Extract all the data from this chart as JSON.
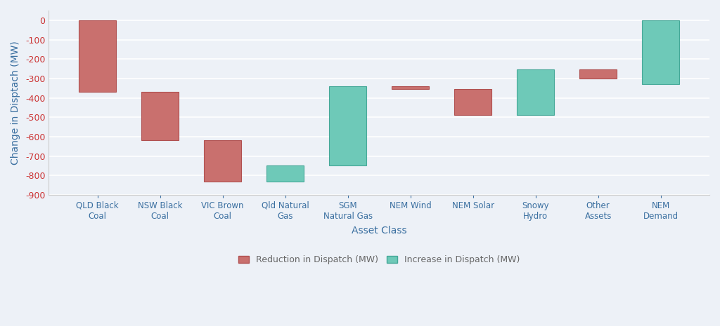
{
  "categories": [
    "QLD Black\nCoal",
    "NSW Black\nCoal",
    "VIC Brown\nCoal",
    "Qld Natural\nGas",
    "SGM\nNatural Gas",
    "NEM Wind",
    "NEM Solar",
    "Snowy\nHydro",
    "Other\nAssets",
    "NEM\nDemand"
  ],
  "bar_bottoms": [
    -370,
    -620,
    -830,
    -830,
    -750,
    -355,
    -490,
    -490,
    -300,
    -330
  ],
  "bar_tops": [
    0,
    -370,
    -620,
    -750,
    -340,
    -340,
    -355,
    -255,
    -255,
    0
  ],
  "bar_types": [
    "reduction",
    "reduction",
    "reduction",
    "increase",
    "increase",
    "reduction",
    "reduction",
    "increase",
    "reduction",
    "increase"
  ],
  "reduction_color": "#c9706e",
  "increase_color": "#6ec9b8",
  "reduction_edge_color": "#b05050",
  "increase_edge_color": "#45a898",
  "xlabel": "Asset Class",
  "ylabel": "Change in Disptach (MW)",
  "ylim": [
    -900,
    50
  ],
  "yticks": [
    0,
    -100,
    -200,
    -300,
    -400,
    -500,
    -600,
    -700,
    -800,
    -900
  ],
  "background_color": "#edf1f7",
  "grid_color": "#ffffff",
  "axis_label_color": "#3a6fa0",
  "tick_label_color_y": "#cc3333",
  "tick_label_color_x": "#3a6fa0",
  "legend_labels": [
    "Reduction in Dispatch (MW)",
    "Increase in Dispatch (MW)"
  ],
  "bar_width": 0.6,
  "figsize": [
    10.24,
    4.65
  ],
  "dpi": 100
}
